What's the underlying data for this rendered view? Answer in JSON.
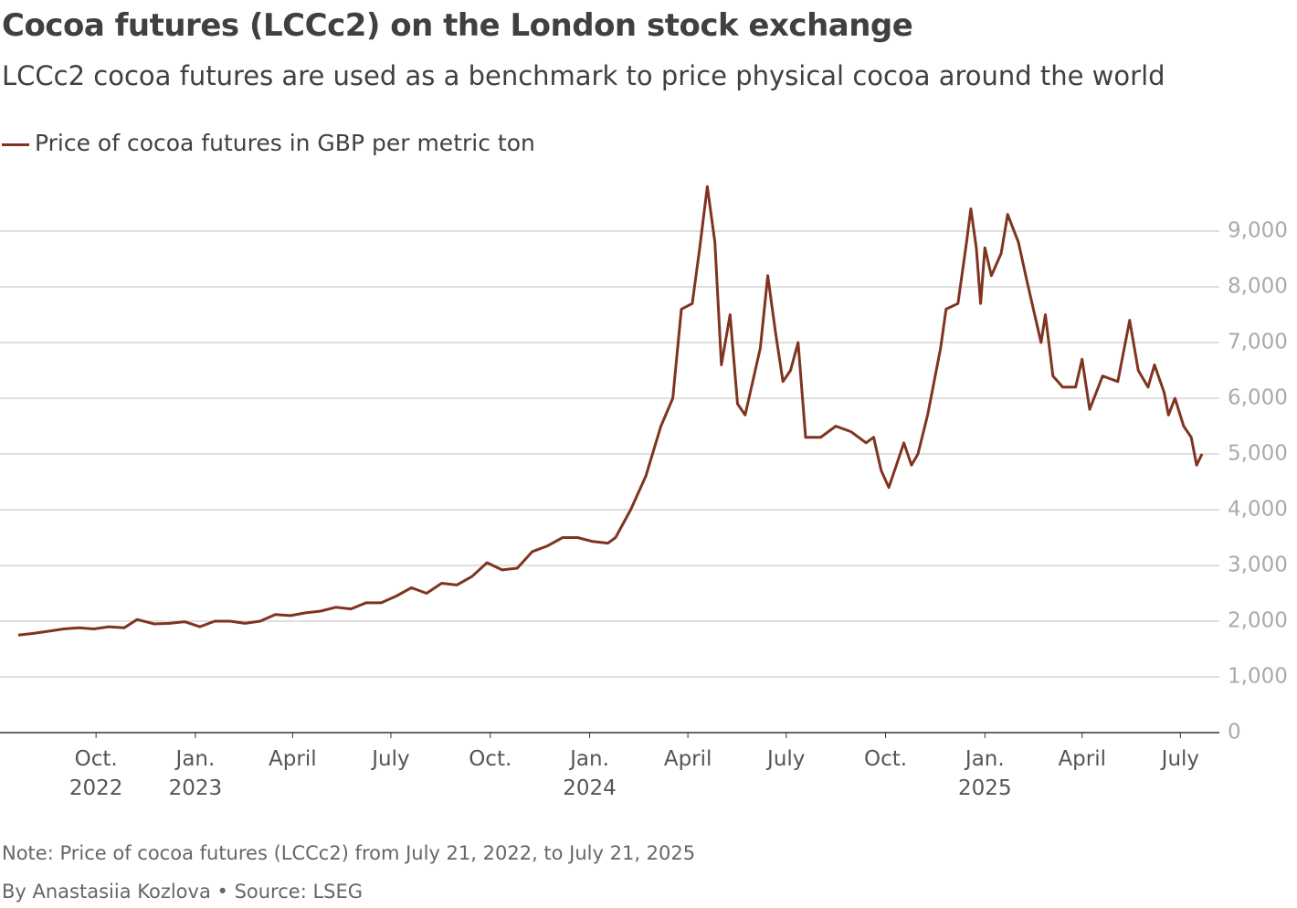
{
  "chart_data": {
    "type": "line",
    "title": "Cocoa futures (LCCc2) on the London stock exchange",
    "subtitle": "LCCc2 cocoa futures are used as a benchmark to price physical cocoa around the world",
    "note": "Note: Price of cocoa futures (LCCc2) from July 21, 2022, to July 21, 2025",
    "source": "By Anastasiia Kozlova • Source: LSEG",
    "x": [
      "2022-07-21",
      "2022-08-04",
      "2022-08-18",
      "2022-09-01",
      "2022-09-15",
      "2022-09-29",
      "2022-10-13",
      "2022-10-27",
      "2022-11-08",
      "2022-11-24",
      "2022-12-08",
      "2022-12-22",
      "2023-01-05",
      "2023-01-19",
      "2023-02-02",
      "2023-02-16",
      "2023-03-02",
      "2023-03-16",
      "2023-03-30",
      "2023-04-13",
      "2023-04-27",
      "2023-05-11",
      "2023-05-25",
      "2023-06-08",
      "2023-06-22",
      "2023-07-06",
      "2023-07-20",
      "2023-08-03",
      "2023-08-17",
      "2023-08-31",
      "2023-09-14",
      "2023-09-28",
      "2023-10-12",
      "2023-10-26",
      "2023-11-09",
      "2023-11-23",
      "2023-12-07",
      "2023-12-21",
      "2024-01-04",
      "2024-01-18",
      "2024-01-25",
      "2024-02-08",
      "2024-02-22",
      "2024-03-07",
      "2024-03-18",
      "2024-03-26",
      "2024-04-05",
      "2024-04-12",
      "2024-04-19",
      "2024-04-26",
      "2024-05-02",
      "2024-05-10",
      "2024-05-17",
      "2024-05-24",
      "2024-06-07",
      "2024-06-14",
      "2024-06-21",
      "2024-06-28",
      "2024-07-05",
      "2024-07-12",
      "2024-07-19",
      "2024-08-02",
      "2024-08-16",
      "2024-08-30",
      "2024-09-13",
      "2024-09-20",
      "2024-09-27",
      "2024-10-04",
      "2024-10-11",
      "2024-10-18",
      "2024-10-25",
      "2024-10-31",
      "2024-11-09",
      "2024-11-21",
      "2024-11-26",
      "2024-12-07",
      "2024-12-15",
      "2024-12-19",
      "2024-12-24",
      "2024-12-28",
      "2025-01-01",
      "2025-01-07",
      "2025-01-16",
      "2025-01-22",
      "2025-02-01",
      "2025-02-09",
      "2025-02-22",
      "2025-02-26",
      "2025-03-05",
      "2025-03-14",
      "2025-03-26",
      "2025-04-01",
      "2025-04-08",
      "2025-04-20",
      "2025-05-04",
      "2025-05-15",
      "2025-05-23",
      "2025-06-01",
      "2025-06-07",
      "2025-06-16",
      "2025-06-20",
      "2025-06-26",
      "2025-07-04",
      "2025-07-11",
      "2025-07-16",
      "2025-07-21"
    ],
    "series": [
      {
        "name": "Price of cocoa futures in GBP per metric ton",
        "color": "#7f3420",
        "values": [
          1750,
          1780,
          1820,
          1860,
          1880,
          1860,
          1900,
          1880,
          2030,
          1950,
          1960,
          1990,
          1900,
          2000,
          2000,
          1960,
          2000,
          2120,
          2100,
          2150,
          2180,
          2250,
          2220,
          2330,
          2330,
          2450,
          2600,
          2500,
          2680,
          2650,
          2800,
          3050,
          2920,
          2950,
          3250,
          3350,
          3500,
          3500,
          3430,
          3400,
          3500,
          4000,
          4600,
          5500,
          6000,
          7600,
          7700,
          8700,
          9800,
          8800,
          6600,
          7500,
          5900,
          5700,
          6900,
          8200,
          7200,
          6300,
          6500,
          7000,
          5300,
          5300,
          5500,
          5400,
          5200,
          5300,
          4700,
          4400,
          4800,
          5200,
          4800,
          5000,
          5700,
          6900,
          7600,
          7700,
          8800,
          9400,
          8700,
          7700,
          8700,
          8200,
          8600,
          9300,
          8800,
          8100,
          7000,
          7500,
          6400,
          6200,
          6200,
          6700,
          5800,
          6400,
          6300,
          7400,
          6500,
          6200,
          6600,
          6100,
          5700,
          6000,
          5500,
          5300,
          4800,
          5000
        ]
      }
    ],
    "xlim": [
      "2022-07-21",
      "2025-07-21"
    ],
    "xticks": [
      {
        "value": "2022-10-01",
        "label": "Oct.\n2022"
      },
      {
        "value": "2023-01-01",
        "label": "Jan.\n2023"
      },
      {
        "value": "2023-04-01",
        "label": "April"
      },
      {
        "value": "2023-07-01",
        "label": "July"
      },
      {
        "value": "2023-10-01",
        "label": "Oct."
      },
      {
        "value": "2024-01-01",
        "label": "Jan.\n2024"
      },
      {
        "value": "2024-04-01",
        "label": "April"
      },
      {
        "value": "2024-07-01",
        "label": "July"
      },
      {
        "value": "2024-10-01",
        "label": "Oct."
      },
      {
        "value": "2025-01-01",
        "label": "Jan.\n2025"
      },
      {
        "value": "2025-04-01",
        "label": "April"
      },
      {
        "value": "2025-07-01",
        "label": "July"
      }
    ],
    "ylim": [
      0,
      10000
    ],
    "yticks": [
      0,
      {
        "value": 1000,
        "label": "1,000"
      },
      {
        "value": 2000,
        "label": "2,000"
      },
      {
        "value": 3000,
        "label": "3,000"
      },
      {
        "value": 4000,
        "label": "4,000"
      },
      {
        "value": 5000,
        "label": "5,000"
      },
      {
        "value": 6000,
        "label": "6,000"
      },
      {
        "value": 7000,
        "label": "7,000"
      },
      {
        "value": 8000,
        "label": "8,000"
      },
      {
        "value": 9000,
        "label": "9,000"
      }
    ],
    "grid": true
  }
}
